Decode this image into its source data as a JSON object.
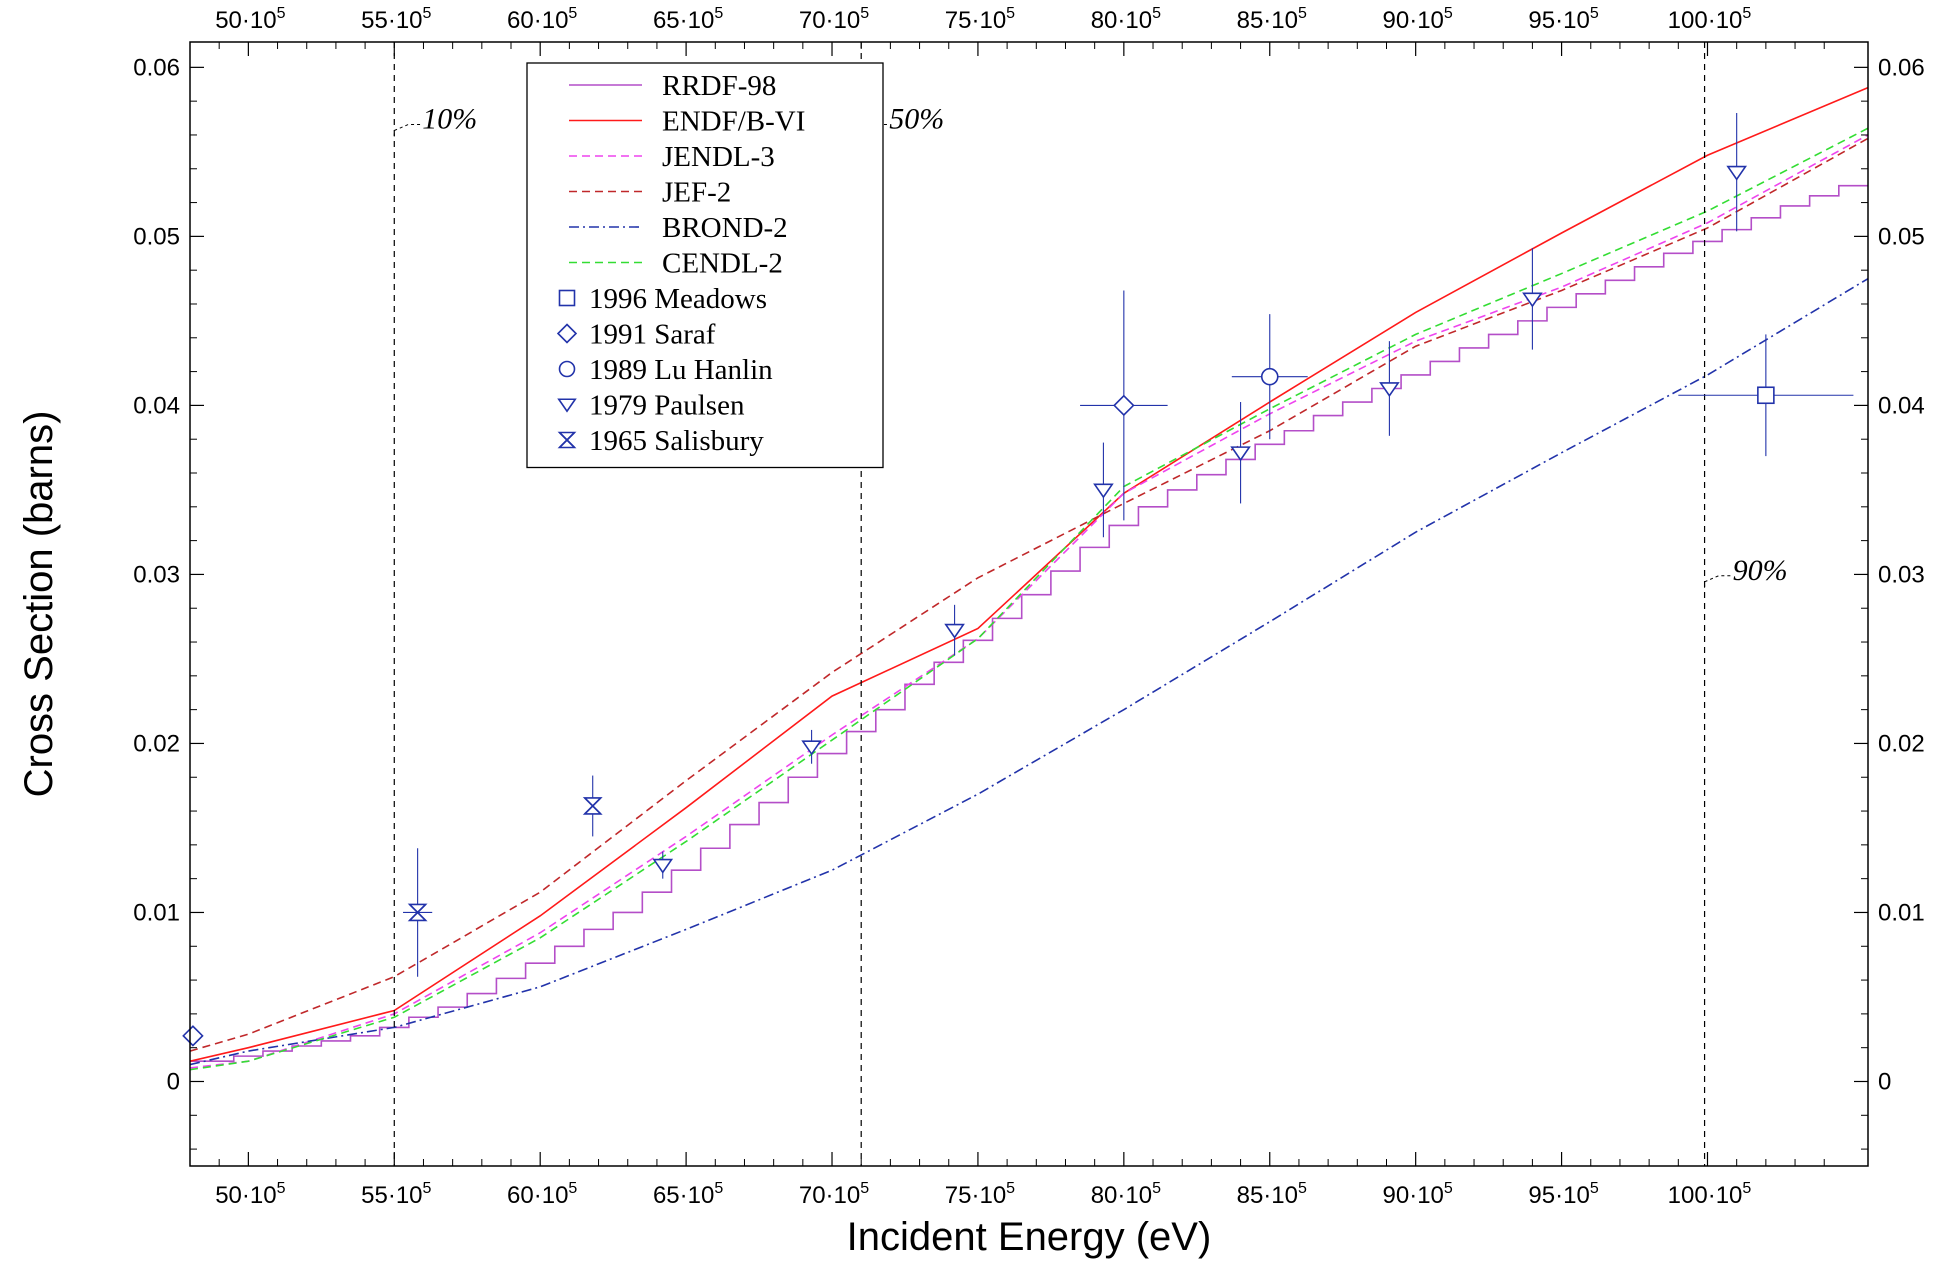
{
  "chart_data": {
    "type": "line",
    "xlabel": "Incident Energy (eV)",
    "ylabel": "Cross Section (barns)",
    "xlim": [
      4800000,
      10550000
    ],
    "ylim": [
      -0.005,
      0.0615
    ],
    "x_ticks": [
      5000000,
      5500000,
      6000000,
      6500000,
      7000000,
      7500000,
      8000000,
      8500000,
      9000000,
      9500000,
      10000000
    ],
    "x_tick_labels": [
      {
        "m": "50",
        "e": "5"
      },
      {
        "m": "55",
        "e": "5"
      },
      {
        "m": "60",
        "e": "5"
      },
      {
        "m": "65",
        "e": "5"
      },
      {
        "m": "70",
        "e": "5"
      },
      {
        "m": "75",
        "e": "5"
      },
      {
        "m": "80",
        "e": "5"
      },
      {
        "m": "85",
        "e": "5"
      },
      {
        "m": "90",
        "e": "5"
      },
      {
        "m": "95",
        "e": "5"
      },
      {
        "m": "100",
        "e": "5"
      }
    ],
    "y_ticks": [
      0,
      0.01,
      0.02,
      0.03,
      0.04,
      0.05,
      0.06
    ],
    "y_tick_labels": [
      "0",
      "0.01",
      "0.02",
      "0.03",
      "0.04",
      "0.05",
      "0.06"
    ],
    "grid": false,
    "legend_position": "top-center",
    "series": [
      {
        "name": "RRDF-98",
        "color": "#b44ec8",
        "style": "step",
        "x": [
          4800000,
          4950000,
          5050000,
          5150000,
          5250000,
          5350000,
          5450000,
          5550000,
          5650000,
          5750000,
          5850000,
          5950000,
          6050000,
          6150000,
          6250000,
          6350000,
          6450000,
          6550000,
          6650000,
          6750000,
          6850000,
          6950000,
          7050000,
          7150000,
          7250000,
          7350000,
          7450000,
          7550000,
          7650000,
          7750000,
          7850000,
          7950000,
          8050000,
          8150000,
          8250000,
          8350000,
          8450000,
          8550000,
          8650000,
          8750000,
          8850000,
          8950000,
          9050000,
          9150000,
          9250000,
          9350000,
          9450000,
          9550000,
          9650000,
          9750000,
          9850000,
          9950000,
          10050000,
          10150000,
          10250000,
          10350000,
          10450000,
          10550000
        ],
        "y": [
          0.0012,
          0.0015,
          0.0018,
          0.0021,
          0.0024,
          0.0027,
          0.0032,
          0.0038,
          0.0044,
          0.0052,
          0.0061,
          0.007,
          0.008,
          0.009,
          0.01,
          0.0112,
          0.0125,
          0.0138,
          0.0152,
          0.0165,
          0.018,
          0.0194,
          0.0207,
          0.022,
          0.0235,
          0.0248,
          0.0261,
          0.0274,
          0.0288,
          0.0302,
          0.0316,
          0.0329,
          0.034,
          0.035,
          0.0359,
          0.0368,
          0.0377,
          0.0385,
          0.0394,
          0.0402,
          0.041,
          0.0418,
          0.0426,
          0.0434,
          0.0442,
          0.045,
          0.0458,
          0.0466,
          0.0474,
          0.0482,
          0.049,
          0.0497,
          0.0504,
          0.0511,
          0.0518,
          0.0524,
          0.053,
          0.053
        ]
      },
      {
        "name": "ENDF/B-VI",
        "color": "#ff1a1a",
        "style": "solid",
        "x": [
          4800000,
          5000000,
          5500000,
          6000000,
          6500000,
          7000000,
          7500000,
          8000000,
          8500000,
          9000000,
          9500000,
          10000000,
          10550000
        ],
        "y": [
          0.0012,
          0.002,
          0.0042,
          0.0098,
          0.0162,
          0.0228,
          0.0268,
          0.0348,
          0.0402,
          0.0455,
          0.0502,
          0.0548,
          0.0588
        ]
      },
      {
        "name": "JENDL-3",
        "color": "#ee44ee",
        "style": "dashed",
        "x": [
          4800000,
          5000000,
          5500000,
          6000000,
          6500000,
          7000000,
          7500000,
          8000000,
          8500000,
          9000000,
          9500000,
          10000000,
          10550000
        ],
        "y": [
          0.0008,
          0.0012,
          0.004,
          0.0088,
          0.0145,
          0.0205,
          0.0262,
          0.0348,
          0.0395,
          0.0438,
          0.047,
          0.0508,
          0.056
        ]
      },
      {
        "name": "JEF-2",
        "color": "#c0282a",
        "style": "dashed",
        "x": [
          4800000,
          5000000,
          5500000,
          6000000,
          6500000,
          7000000,
          7500000,
          8000000,
          8500000,
          9000000,
          9500000,
          10000000,
          10550000
        ],
        "y": [
          0.0018,
          0.0028,
          0.0062,
          0.0112,
          0.0178,
          0.0242,
          0.0298,
          0.0342,
          0.0385,
          0.0435,
          0.0468,
          0.0505,
          0.0558
        ]
      },
      {
        "name": "BROND-2",
        "color": "#2233aa",
        "style": "dashdot",
        "x": [
          4800000,
          5000000,
          5500000,
          6000000,
          6500000,
          7000000,
          7500000,
          8000000,
          8500000,
          9000000,
          9500000,
          10000000,
          10550000
        ],
        "y": [
          0.001,
          0.0018,
          0.0032,
          0.0056,
          0.009,
          0.0125,
          0.017,
          0.022,
          0.0272,
          0.0325,
          0.0372,
          0.0418,
          0.0475
        ]
      },
      {
        "name": "CENDL-2",
        "color": "#33dd33",
        "style": "dashed",
        "x": [
          4800000,
          5000000,
          5500000,
          6000000,
          6500000,
          7000000,
          7500000,
          8000000,
          8500000,
          9000000,
          9500000,
          10000000,
          10550000
        ],
        "y": [
          0.0007,
          0.0012,
          0.0038,
          0.0085,
          0.0142,
          0.0202,
          0.0262,
          0.0352,
          0.0398,
          0.0442,
          0.0478,
          0.0515,
          0.0564
        ]
      }
    ],
    "experiments": [
      {
        "name": "1996 Meadows",
        "marker": "square",
        "color": "#2233aa",
        "points": [
          {
            "x": 10200000,
            "y": 0.0406,
            "xerr": 300000,
            "yerr": 0.0036
          }
        ]
      },
      {
        "name": "1991 Saraf",
        "marker": "diamond",
        "color": "#2233aa",
        "points": [
          {
            "x": 4810000,
            "y": 0.0027,
            "xerr": 0,
            "yerr": 0
          },
          {
            "x": 8000000,
            "y": 0.04,
            "xerr": 150000,
            "yerr": 0.0068
          }
        ]
      },
      {
        "name": "1989 Lu Hanlin",
        "marker": "circle",
        "color": "#2233aa",
        "points": [
          {
            "x": 8500000,
            "y": 0.0417,
            "xerr": 130000,
            "yerr": 0.0037
          }
        ]
      },
      {
        "name": "1979 Paulsen",
        "marker": "triangle-down",
        "color": "#2233aa",
        "points": [
          {
            "x": 6420000,
            "y": 0.0128,
            "xerr": 0,
            "yerr": 0.0008
          },
          {
            "x": 6930000,
            "y": 0.0198,
            "xerr": 0,
            "yerr": 0.001
          },
          {
            "x": 7420000,
            "y": 0.0267,
            "xerr": 0,
            "yerr": 0.0015
          },
          {
            "x": 7930000,
            "y": 0.035,
            "xerr": 0,
            "yerr": 0.0028
          },
          {
            "x": 8400000,
            "y": 0.0372,
            "xerr": 0,
            "yerr": 0.003
          },
          {
            "x": 8910000,
            "y": 0.041,
            "xerr": 0,
            "yerr": 0.0028
          },
          {
            "x": 9400000,
            "y": 0.0463,
            "xerr": 0,
            "yerr": 0.003
          },
          {
            "x": 10100000,
            "y": 0.0538,
            "xerr": 0,
            "yerr": 0.0035
          }
        ]
      },
      {
        "name": "1965 Salisbury",
        "marker": "hourglass",
        "color": "#2233aa",
        "points": [
          {
            "x": 5580000,
            "y": 0.01,
            "xerr": 50000,
            "yerr": 0.0038
          },
          {
            "x": 6180000,
            "y": 0.0163,
            "xerr": 0,
            "yerr": 0.0018
          }
        ]
      }
    ],
    "threshold_lines": [
      {
        "x": 5500000,
        "label": "10%",
        "label_y": 0.0565
      },
      {
        "x": 7100000,
        "label": "50%",
        "label_y": 0.0565
      },
      {
        "x": 9990000,
        "label": "90%",
        "label_y": 0.0298
      }
    ]
  }
}
